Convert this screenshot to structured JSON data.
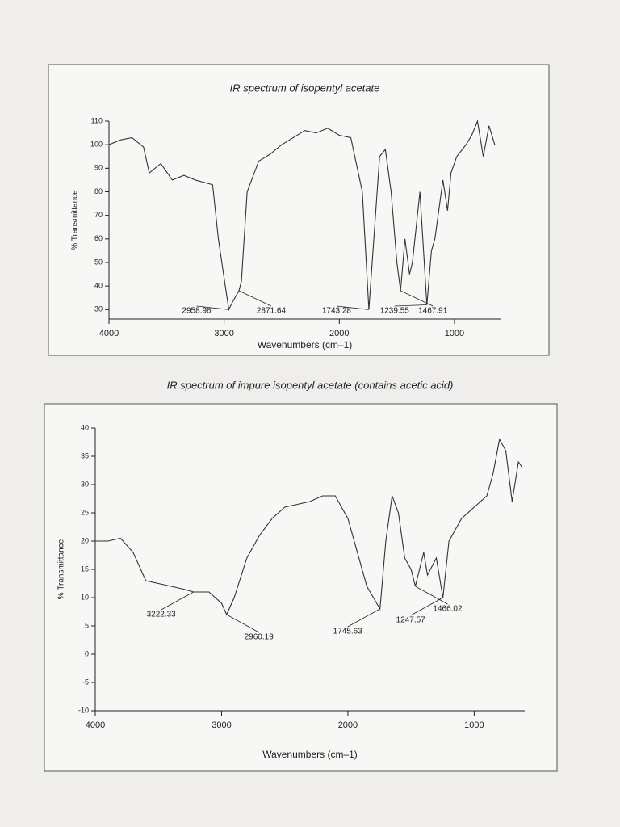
{
  "chart_data": [
    {
      "type": "line",
      "title": "IR spectrum of isopentyl acetate",
      "x_label": "Wavenumbers (cm–1)",
      "y_label": "% Transmittance",
      "x": [
        4000,
        3900,
        3800,
        3700,
        3650,
        3550,
        3450,
        3350,
        3250,
        3100,
        3050,
        2990,
        2958.96,
        2930,
        2871.64,
        2850,
        2800,
        2700,
        2600,
        2500,
        2400,
        2300,
        2200,
        2100,
        2000,
        1900,
        1800,
        1743.28,
        1700,
        1650,
        1600,
        1550,
        1500,
        1467.91,
        1430,
        1390,
        1365,
        1300,
        1239.55,
        1200,
        1170,
        1100,
        1060,
        1030,
        980,
        900,
        850,
        800,
        750,
        700,
        650
      ],
      "values": [
        100,
        102,
        103,
        99,
        88,
        92,
        85,
        87,
        85,
        83,
        60,
        40,
        30,
        33,
        38,
        42,
        80,
        93,
        96,
        100,
        103,
        106,
        105,
        107,
        104,
        103,
        80,
        30,
        60,
        95,
        98,
        80,
        50,
        38,
        60,
        45,
        50,
        80,
        32,
        55,
        60,
        85,
        72,
        88,
        95,
        100,
        104,
        110,
        95,
        108,
        100
      ],
      "color": "#333333",
      "xlim": [
        4000,
        600
      ],
      "xticks": [
        4000,
        3000,
        2000,
        1000
      ],
      "ylim": [
        26,
        110
      ],
      "yticks": [
        30,
        40,
        50,
        60,
        70,
        80,
        90,
        100,
        110
      ],
      "annotations": [
        {
          "label": "2958.96",
          "x": 2958.96,
          "y": 30
        },
        {
          "label": "2871.64",
          "x": 2871.64,
          "y": 38
        },
        {
          "label": "1743.28",
          "x": 1743.28,
          "y": 30
        },
        {
          "label": "1467.91",
          "x": 1467.91,
          "y": 38
        },
        {
          "label": "1239.55",
          "x": 1239.55,
          "y": 32
        }
      ]
    },
    {
      "type": "line",
      "title": "IR spectrum of impure isopentyl acetate (contains acetic acid)",
      "x_label": "Wavenumbers (cm–1)",
      "y_label": "% Transmittance",
      "x": [
        4000,
        3900,
        3800,
        3700,
        3600,
        3500,
        3400,
        3300,
        3222.33,
        3100,
        3000,
        2960.19,
        2900,
        2800,
        2700,
        2600,
        2500,
        2400,
        2300,
        2200,
        2100,
        2000,
        1850,
        1745.63,
        1700,
        1650,
        1600,
        1550,
        1500,
        1466.02,
        1400,
        1370,
        1300,
        1247.57,
        1200,
        1100,
        1000,
        900,
        850,
        800,
        750,
        700,
        650,
        620
      ],
      "values": [
        20,
        20,
        20.5,
        18,
        13,
        12.5,
        12,
        11.5,
        11,
        11,
        9,
        7,
        10,
        17,
        21,
        24,
        26,
        26.5,
        27,
        28,
        28,
        24,
        12,
        8,
        20,
        28,
        25,
        17,
        15,
        12,
        18,
        14,
        17,
        10,
        20,
        24,
        26,
        28,
        32,
        38,
        36,
        27,
        34,
        33
      ],
      "color": "#333333",
      "xlim": [
        4000,
        600
      ],
      "xticks": [
        4000,
        3000,
        2000,
        1000
      ],
      "ylim": [
        -10,
        40
      ],
      "yticks": [
        -10,
        -5,
        0,
        5,
        10,
        15,
        20,
        25,
        30,
        35,
        40
      ],
      "annotations": [
        {
          "label": "3222.33",
          "x": 3222.33,
          "y": 11
        },
        {
          "label": "2960.19",
          "x": 2960.19,
          "y": 7
        },
        {
          "label": "1745.63",
          "x": 1745.63,
          "y": 8
        },
        {
          "label": "1466.02",
          "x": 1466.02,
          "y": 12
        },
        {
          "label": "1247.57",
          "x": 1247.57,
          "y": 10
        }
      ]
    }
  ]
}
